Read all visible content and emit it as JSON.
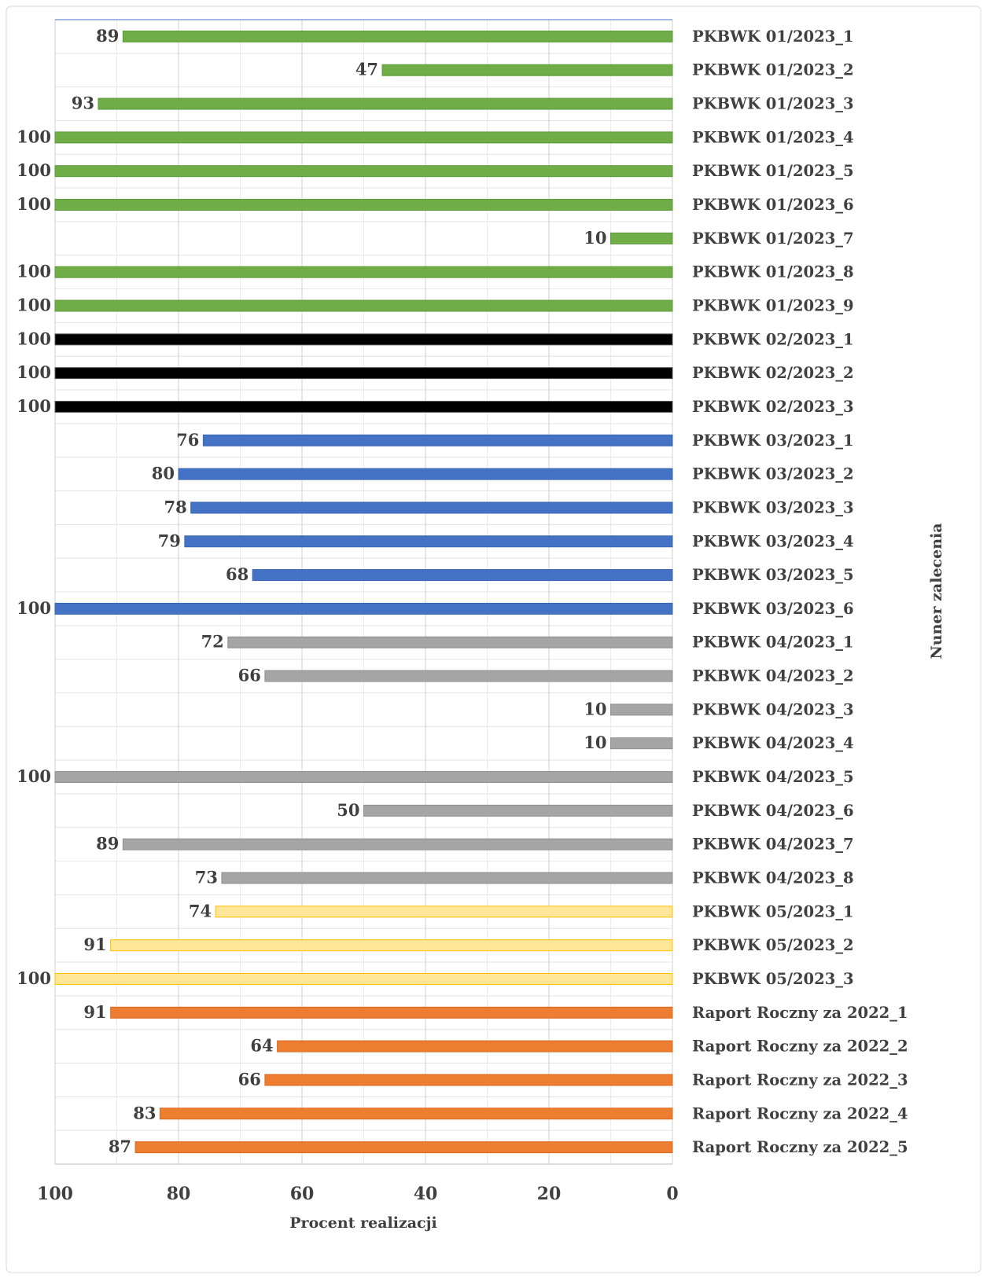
{
  "chart_data": {
    "type": "barh",
    "xlabel": "Procent realizacji",
    "ylabel": "Nuner zalecenia",
    "categories": [
      "PKBWK 01/2023_1",
      "PKBWK 01/2023_2",
      "PKBWK 01/2023_3",
      "PKBWK 01/2023_4",
      "PKBWK 01/2023_5",
      "PKBWK 01/2023_6",
      "PKBWK 01/2023_7",
      "PKBWK 01/2023_8",
      "PKBWK 01/2023_9",
      "PKBWK 02/2023_1",
      "PKBWK 02/2023_2",
      "PKBWK 02/2023_3",
      "PKBWK 03/2023_1",
      "PKBWK 03/2023_2",
      "PKBWK 03/2023_3",
      "PKBWK 03/2023_4",
      "PKBWK 03/2023_5",
      "PKBWK 03/2023_6",
      "PKBWK 04/2023_1",
      "PKBWK 04/2023_2",
      "PKBWK 04/2023_3",
      "PKBWK 04/2023_4",
      "PKBWK 04/2023_5",
      "PKBWK 04/2023_6",
      "PKBWK 04/2023_7",
      "PKBWK 04/2023_8",
      "PKBWK 05/2023_1",
      "PKBWK 05/2023_2",
      "PKBWK 05/2023_3",
      "Raport Roczny za 2022_1",
      "Raport Roczny za 2022_2",
      "Raport Roczny za 2022_3",
      "Raport Roczny za 2022_4",
      "Raport Roczny za 2022_5"
    ],
    "values": [
      89,
      47,
      93,
      100,
      100,
      100,
      10,
      100,
      100,
      100,
      100,
      100,
      76,
      80,
      78,
      79,
      68,
      100,
      72,
      66,
      10,
      10,
      100,
      50,
      89,
      73,
      74,
      91,
      100,
      91,
      64,
      66,
      83,
      87
    ],
    "colors": [
      "#70ad47",
      "#70ad47",
      "#70ad47",
      "#70ad47",
      "#70ad47",
      "#70ad47",
      "#70ad47",
      "#70ad47",
      "#70ad47",
      "#000000",
      "#000000",
      "#000000",
      "#4472c4",
      "#4472c4",
      "#4472c4",
      "#4472c4",
      "#4472c4",
      "#4472c4",
      "#a5a5a5",
      "#a5a5a5",
      "#a5a5a5",
      "#a5a5a5",
      "#a5a5a5",
      "#a5a5a5",
      "#a5a5a5",
      "#a5a5a5",
      "#ffe699",
      "#ffe699",
      "#ffe699",
      "#ed7d31",
      "#ed7d31",
      "#ed7d31",
      "#ed7d31",
      "#ed7d31"
    ],
    "edgecolors": [
      "#5a9a38",
      "#5a9a38",
      "#5a9a38",
      "#5a9a38",
      "#5a9a38",
      "#5a9a38",
      "#5a9a38",
      "#5a9a38",
      "#5a9a38",
      "#555555",
      "#555555",
      "#555555",
      "#3864b0",
      "#3864b0",
      "#3864b0",
      "#3864b0",
      "#3864b0",
      "#3864b0",
      "#8f8f8f",
      "#8f8f8f",
      "#8f8f8f",
      "#8f8f8f",
      "#8f8f8f",
      "#8f8f8f",
      "#8f8f8f",
      "#8f8f8f",
      "#ffc000",
      "#ffc000",
      "#ffc000",
      "#d86a20",
      "#d86a20",
      "#d86a20",
      "#d86a20",
      "#d86a20"
    ],
    "xlim": [
      100,
      0
    ],
    "xticks": [
      100,
      80,
      60,
      40,
      20,
      0
    ],
    "minor_xticks": [
      90,
      70,
      50,
      30,
      10
    ],
    "grid": true
  }
}
